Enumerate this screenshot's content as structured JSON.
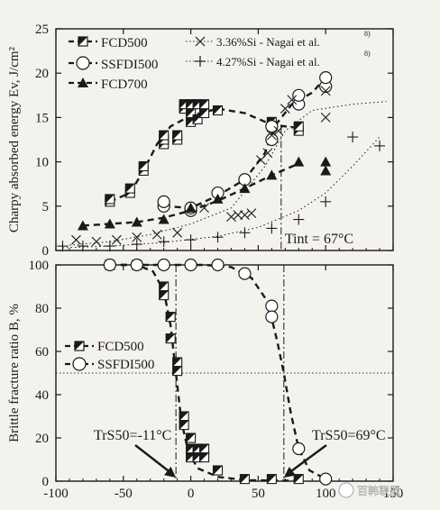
{
  "chart_data": [
    {
      "type": "scatter",
      "ylabel": "Charpy absorbed energy Ev, J/cm²",
      "xlim": [
        -100,
        150
      ],
      "ylim": [
        0,
        25
      ],
      "xticks": [
        -100,
        -50,
        0,
        50,
        100,
        150
      ],
      "yticks": [
        0,
        5,
        10,
        15,
        20,
        25
      ],
      "annotation": "Tint = 67°C",
      "vline_x": 67,
      "series": [
        {
          "name": "FCD500",
          "marker": "half-square",
          "x": [
            -60,
            -60,
            -45,
            -45,
            -35,
            -35,
            -20,
            -20,
            -20,
            -10,
            -10,
            -5,
            -5,
            0,
            0,
            0,
            5,
            5,
            10,
            10,
            20,
            60,
            60,
            80,
            80
          ],
          "y": [
            5.5,
            5.8,
            6.5,
            7.0,
            9.0,
            9.5,
            12.0,
            12.5,
            13.0,
            12.5,
            13.0,
            16.0,
            16.5,
            14.5,
            15.5,
            16.5,
            14.8,
            16.5,
            15.5,
            16.5,
            15.8,
            14.0,
            14.5,
            13.5,
            14.0
          ]
        },
        {
          "name": "SSFDI500",
          "marker": "circle",
          "x": [
            -20,
            -20,
            0,
            0,
            20,
            40,
            60,
            60,
            80,
            80,
            100,
            100
          ],
          "y": [
            5.0,
            5.5,
            4.5,
            4.8,
            6.5,
            8.0,
            12.5,
            14.0,
            16.5,
            17.5,
            18.5,
            19.5
          ]
        },
        {
          "name": "FCD700",
          "marker": "triangle",
          "x": [
            -80,
            -60,
            -40,
            -20,
            0,
            20,
            40,
            60,
            80,
            100,
            100
          ],
          "y": [
            2.8,
            3.0,
            3.2,
            3.5,
            4.8,
            5.8,
            7.0,
            8.5,
            10.0,
            9.0,
            10.0
          ]
        },
        {
          "name": "3.36%Si - Nagai et al.",
          "marker": "x",
          "x": [
            -85,
            -70,
            -55,
            -40,
            -25,
            -10,
            10,
            30,
            35,
            40,
            45,
            52,
            57,
            60,
            65,
            70,
            75,
            100,
            100
          ],
          "y": [
            1.2,
            1.0,
            1.2,
            1.5,
            1.8,
            2.0,
            4.8,
            3.8,
            4.0,
            4.0,
            4.2,
            10.2,
            11.0,
            13.0,
            13.5,
            16.0,
            17.0,
            15.0,
            18.0
          ]
        },
        {
          "name": "4.27%Si - Nagai et al.",
          "marker": "plus",
          "x": [
            -95,
            -80,
            -60,
            -40,
            -20,
            0,
            20,
            40,
            60,
            80,
            100,
            120,
            140
          ],
          "y": [
            0.5,
            0.5,
            0.5,
            0.7,
            1.0,
            1.2,
            1.5,
            2.0,
            2.5,
            3.5,
            5.5,
            12.8,
            11.8
          ]
        }
      ]
    },
    {
      "type": "scatter",
      "ylabel": "Brittle fracture ratio B, %",
      "xlim": [
        -100,
        150
      ],
      "ylim": [
        0,
        100
      ],
      "xticks": [
        -100,
        -50,
        0,
        50,
        100,
        150
      ],
      "yticks": [
        0,
        20,
        40,
        60,
        80,
        100
      ],
      "hline_y": 50,
      "annotations": [
        {
          "label": "TrS50=-11°C",
          "x": -11
        },
        {
          "label": "TrS50=69°C",
          "x": 69
        }
      ],
      "series": [
        {
          "name": "FCD500",
          "marker": "half-square",
          "x": [
            -60,
            -40,
            -20,
            -20,
            -15,
            -15,
            -10,
            -10,
            -5,
            -5,
            0,
            0,
            0,
            5,
            5,
            10,
            10,
            20,
            40,
            60,
            80
          ],
          "y": [
            100,
            100,
            90,
            86,
            76,
            66,
            55,
            51,
            30,
            26,
            20,
            15,
            11,
            15,
            11,
            15,
            11,
            5,
            1,
            1,
            1
          ],
          "comment": ""
        },
        {
          "name": "SSFDI500",
          "marker": "circle",
          "x": [
            -60,
            -40,
            -20,
            0,
            20,
            40,
            60,
            60,
            80,
            100
          ],
          "y": [
            100,
            100,
            100,
            100,
            100,
            96,
            81,
            76,
            15,
            1
          ]
        }
      ]
    }
  ],
  "watermark": "百韩联盟"
}
